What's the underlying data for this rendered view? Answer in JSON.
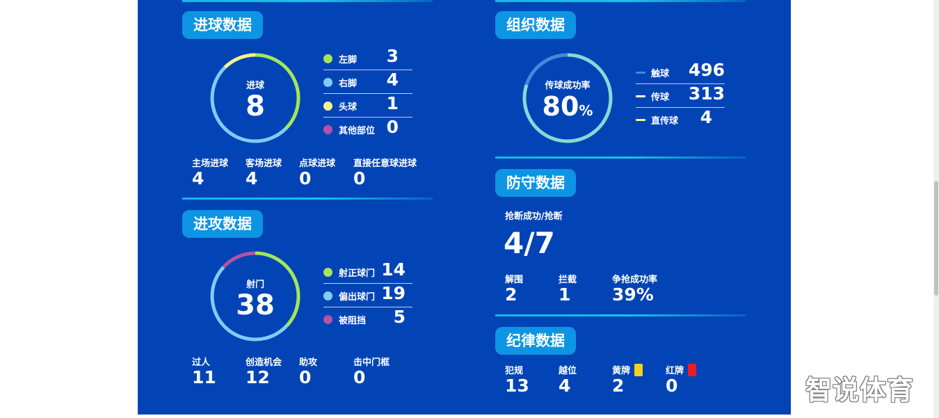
{
  "colors": {
    "panel_bg": "#0244b5",
    "title_pill_bg": "#0d95e3",
    "divider": "#15b6ec",
    "green": "#a5e55b",
    "light_blue": "#7fccf7",
    "yellow": "#f3f58e",
    "purple": "#b552a8",
    "teal": "#8ad7d7",
    "mid_blue": "#4b86dd",
    "card_yellow": "#f2d21b",
    "card_red": "#ee1b24"
  },
  "scoring": {
    "title": "进球数据",
    "center_label": "进球",
    "center_value": "8",
    "legend": [
      {
        "label": "左脚",
        "value": "3",
        "color": "#a5e55b"
      },
      {
        "label": "右脚",
        "value": "4",
        "color": "#7fccf7"
      },
      {
        "label": "头球",
        "value": "1",
        "color": "#f3f58e"
      },
      {
        "label": "其他部位",
        "value": "0",
        "color": "#b552a8"
      }
    ],
    "stats": [
      {
        "label": "主场进球",
        "value": "4"
      },
      {
        "label": "客场进球",
        "value": "4"
      },
      {
        "label": "点球进球",
        "value": "0"
      },
      {
        "label": "直接任意球进球",
        "value": "0"
      }
    ]
  },
  "attack": {
    "title": "进攻数据",
    "center_label": "射门",
    "center_value": "38",
    "legend": [
      {
        "label": "射正球门",
        "value": "14",
        "color": "#a5e55b"
      },
      {
        "label": "偏出球门",
        "value": "19",
        "color": "#7fccf7"
      },
      {
        "label": "被阻挡",
        "value": "5",
        "color": "#b552a8"
      }
    ],
    "stats": [
      {
        "label": "过人",
        "value": "11"
      },
      {
        "label": "创造机会",
        "value": "12"
      },
      {
        "label": "助攻",
        "value": "0"
      },
      {
        "label": "击中门框",
        "value": "0"
      }
    ]
  },
  "organization": {
    "title": "组织数据",
    "center_label": "传球成功率",
    "center_value": "80",
    "center_unit": "%",
    "pass_success_fraction": 0.8,
    "legend": [
      {
        "label": "触球",
        "value": "496",
        "color": "#4b86dd"
      },
      {
        "label": "传球",
        "value": "313",
        "color": "#ffffff"
      },
      {
        "label": "直传球",
        "value": "4",
        "color": "#f3f58e"
      }
    ]
  },
  "defense": {
    "title": "防守数据",
    "main_label": "抢断成功/抢断",
    "main_value": "4/7",
    "stats": [
      {
        "label": "解围",
        "value": "2"
      },
      {
        "label": "拦截",
        "value": "1"
      },
      {
        "label": "争抢成功率",
        "value": "39%"
      }
    ]
  },
  "discipline": {
    "title": "纪律数据",
    "stats": [
      {
        "label": "犯规",
        "value": "13"
      },
      {
        "label": "越位",
        "value": "4"
      },
      {
        "label": "黄牌",
        "value": "2",
        "card_color": "#f2d21b"
      },
      {
        "label": "红牌",
        "value": "0",
        "card_color": "#ee1b24"
      }
    ]
  },
  "watermark": "智说体育"
}
